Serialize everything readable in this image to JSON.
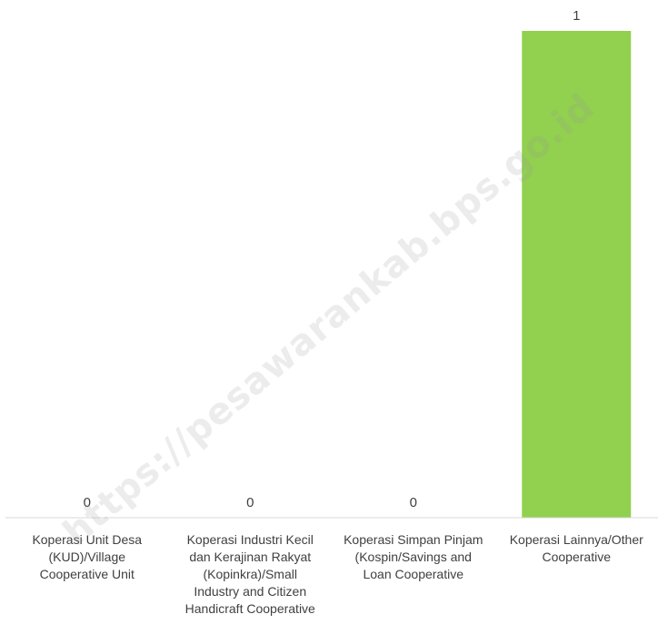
{
  "chart_data": {
    "type": "bar",
    "categories": [
      "Koperasi Unit Desa (KUD)/Village Cooperative Unit",
      "Koperasi Industri Kecil dan Kerajinan Rakyat (Kopinkra)/Small Industry and Citizen Handicraft Cooperative",
      "Koperasi Simpan Pinjam (Kospin/Savings and Loan Cooperative",
      "Koperasi Lainnya/Other Cooperative"
    ],
    "category_lines": [
      [
        "Koperasi Unit Desa",
        "(KUD)/Village",
        "Cooperative Unit"
      ],
      [
        "Koperasi Industri Kecil",
        "dan Kerajinan Rakyat",
        "(Kopinkra)/Small",
        "Industry and Citizen",
        "Handicraft Cooperative"
      ],
      [
        "Koperasi Simpan Pinjam",
        "(Kospin/Savings and",
        "Loan Cooperative"
      ],
      [
        "Koperasi Lainnya/Other",
        "Cooperative"
      ]
    ],
    "values": [
      0,
      0,
      0,
      1
    ],
    "data_labels": [
      "0",
      "0",
      "0",
      "1"
    ],
    "ylim": [
      0,
      1
    ],
    "grid": false,
    "bar_color": "#92d050",
    "axis_color": "#d9d9d9",
    "text_color": "#404040"
  },
  "watermark": "https://pesawarankab.bps.go.id"
}
